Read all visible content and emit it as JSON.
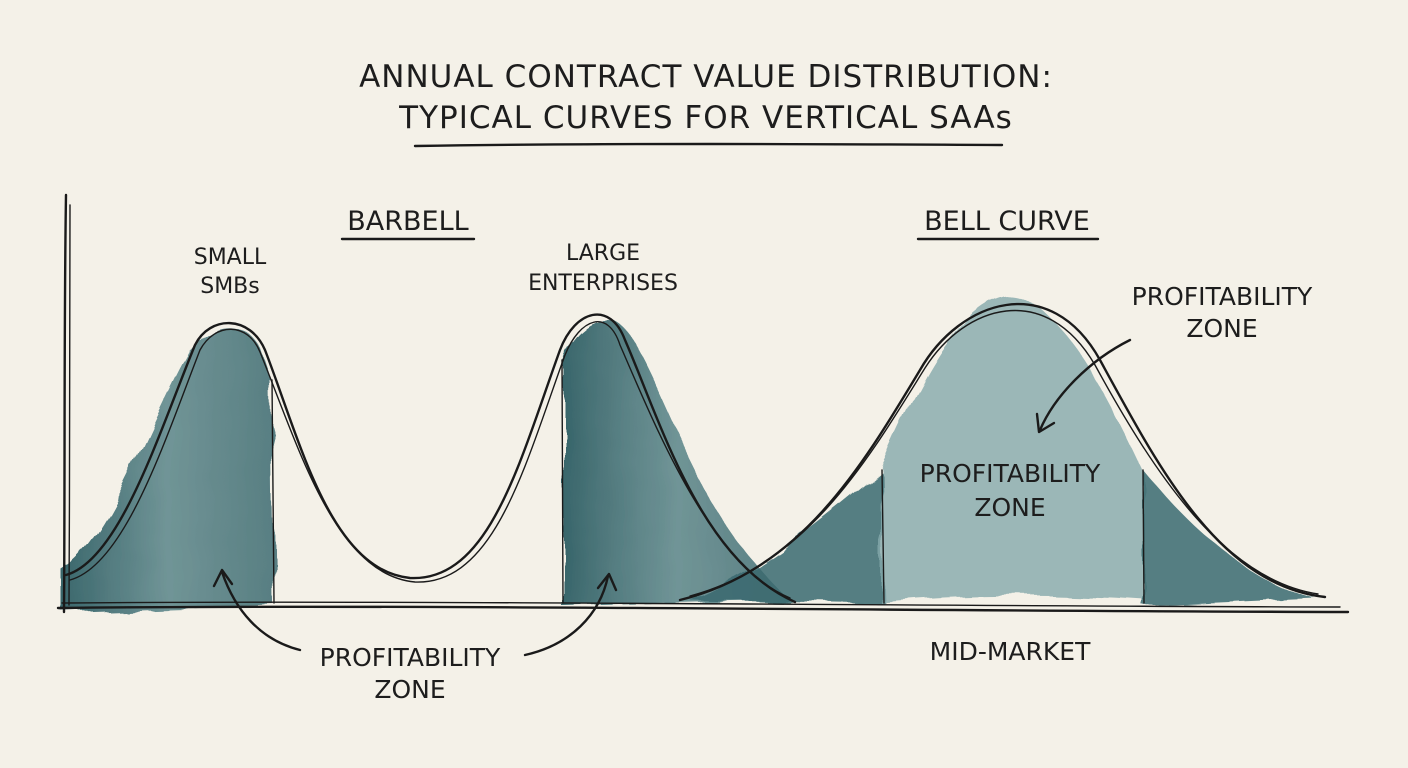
{
  "title": {
    "line1": "ANNUAL CONTRACT VALUE DISTRIBUTION:",
    "line2": "TYPICAL CURVES FOR VERTICAL SAAs"
  },
  "barbell": {
    "heading": "BARBELL",
    "left_label_1": "SMALL",
    "left_label_2": "SMBs",
    "right_label_1": "LARGE",
    "right_label_2": "ENTERPRISES",
    "zone_1": "PROFITABILITY",
    "zone_2": "ZONE"
  },
  "bell": {
    "heading": "BELL CURVE",
    "inner_zone_1": "PROFITABILITY",
    "inner_zone_2": "ZONE",
    "callout_zone_1": "PROFITABILITY",
    "callout_zone_2": "ZONE",
    "x_label": "MID-MARKET"
  },
  "colors": {
    "background": "#f4f1e8",
    "watercolor_dark": "#2f5e64",
    "watercolor_light": "#7fa3a6",
    "ink": "#1a1a1a"
  }
}
